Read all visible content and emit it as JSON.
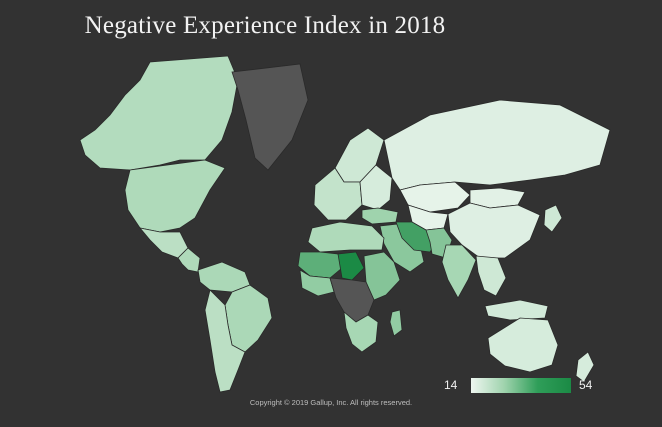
{
  "title": "Negative Experience Index in 2018",
  "legend": {
    "min_label": "14",
    "max_label": "54",
    "color_low": "#eef6f0",
    "color_high": "#1b8a45"
  },
  "copyright": "Copyright © 2019 Gallup, Inc. All rights reserved.",
  "colors": {
    "background": "#323232",
    "no_data": "#555555",
    "title": "#f2f2f2"
  },
  "chart_data": {
    "type": "choropleth",
    "title": "Negative Experience Index in 2018",
    "scale": {
      "min": 14,
      "max": 54
    },
    "regions": [
      {
        "name": "Canada",
        "value": 29
      },
      {
        "name": "United States",
        "value": 30
      },
      {
        "name": "Mexico",
        "value": 27
      },
      {
        "name": "Central America",
        "value": 30
      },
      {
        "name": "Northern South America",
        "value": 31
      },
      {
        "name": "Brazil",
        "value": 31
      },
      {
        "name": "Southern South America",
        "value": 27
      },
      {
        "name": "Greenland",
        "value": null
      },
      {
        "name": "Northern Europe",
        "value": 22
      },
      {
        "name": "Western Europe",
        "value": 25
      },
      {
        "name": "Eastern Europe",
        "value": 20
      },
      {
        "name": "Turkey",
        "value": 34
      },
      {
        "name": "Russia",
        "value": 18
      },
      {
        "name": "Kazakhstan",
        "value": 16
      },
      {
        "name": "Central Asia",
        "value": 16
      },
      {
        "name": "Mongolia",
        "value": 17
      },
      {
        "name": "China",
        "value": 18
      },
      {
        "name": "Japan",
        "value": 22
      },
      {
        "name": "Middle East",
        "value": 37
      },
      {
        "name": "Iraq and Iran",
        "value": 48
      },
      {
        "name": "Afghanistan and Pakistan",
        "value": 38
      },
      {
        "name": "India",
        "value": 32
      },
      {
        "name": "Southeast Asia",
        "value": 22
      },
      {
        "name": "Indonesia",
        "value": 21
      },
      {
        "name": "Australia",
        "value": 20
      },
      {
        "name": "New Zealand",
        "value": 20
      },
      {
        "name": "North Africa",
        "value": 30
      },
      {
        "name": "Sahel",
        "value": 44
      },
      {
        "name": "Chad",
        "value": 54
      },
      {
        "name": "West Africa",
        "value": 36
      },
      {
        "name": "East Africa",
        "value": 38
      },
      {
        "name": "Central Africa",
        "value": null
      },
      {
        "name": "Southern Africa",
        "value": 32
      },
      {
        "name": "Madagascar",
        "value": 36
      }
    ]
  }
}
